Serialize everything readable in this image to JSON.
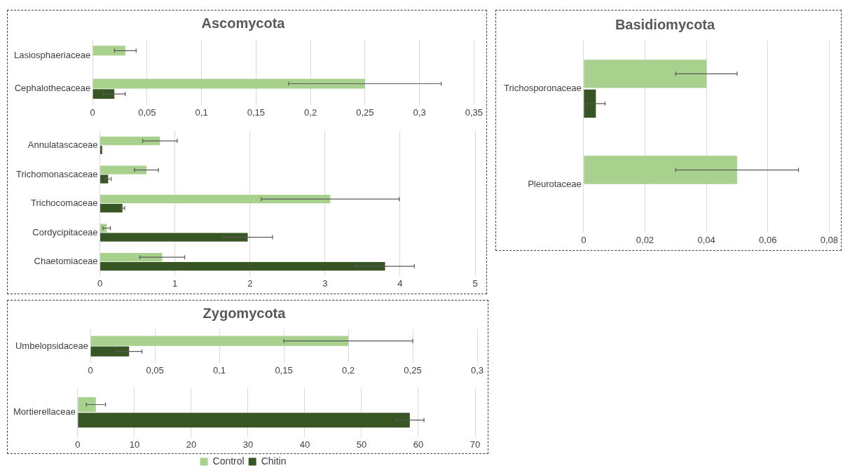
{
  "chart_data": [
    {
      "type": "bar",
      "orientation": "horizontal",
      "title": "Ascomycota",
      "categories": [
        "Lasiosphaeriaceae",
        "Cephalothecaceae"
      ],
      "series": [
        {
          "color": "#a9d18e",
          "values": [
            0.03,
            0.25
          ],
          "errors": [
            0.01,
            0.07
          ]
        },
        {
          "color": "#375623",
          "values": [
            null,
            0.02
          ],
          "errors": [
            null,
            0.01
          ]
        }
      ],
      "xlim": [
        0,
        0.35
      ],
      "xticks": [
        0,
        {
          "value": 0.05,
          "label": "0,05"
        },
        {
          "value": 0.1,
          "label": "0,1"
        },
        {
          "value": 0.15,
          "label": "0,15"
        },
        {
          "value": 0.2,
          "label": "0,2"
        },
        {
          "value": 0.25,
          "label": "0,25"
        },
        {
          "value": 0.3,
          "label": "0,3"
        },
        {
          "value": 0.35,
          "label": "0,35"
        }
      ],
      "grid": "x"
    },
    {
      "type": "bar",
      "orientation": "horizontal",
      "categories": [
        "Annulatascaceae",
        "Trichomonascaceae",
        "Trichocomaceae",
        "Cordycipitaceae",
        "Chaetomiaceae"
      ],
      "series": [
        {
          "color": "#a9d18e",
          "values": [
            0.8,
            0.62,
            3.07,
            0.09,
            0.83
          ],
          "errors": [
            0.23,
            0.16,
            0.92,
            0.05,
            0.3
          ]
        },
        {
          "color": "#375623",
          "values": [
            0.03,
            0.11,
            0.3,
            1.97,
            3.8
          ],
          "errors": [
            null,
            0.04,
            0.03,
            0.33,
            0.39
          ]
        }
      ],
      "xlim": [
        0,
        5
      ],
      "xticks": [
        0,
        1,
        2,
        3,
        4,
        5
      ],
      "grid": "x"
    },
    {
      "type": "bar",
      "orientation": "horizontal",
      "title": "Basidiomycota",
      "categories": [
        "Trichosporonaceae",
        "Pleurotaceae"
      ],
      "series": [
        {
          "color": "#a9d18e",
          "values": [
            0.04,
            0.05
          ],
          "errors": [
            0.01,
            0.02
          ]
        },
        {
          "color": "#375623",
          "values": [
            0.004,
            null
          ],
          "errors": [
            0.003,
            null
          ]
        }
      ],
      "xlim": [
        0,
        0.08
      ],
      "xticks": [
        0,
        {
          "value": 0.02,
          "label": "0,02"
        },
        {
          "value": 0.04,
          "label": "0,04"
        },
        {
          "value": 0.06,
          "label": "0,06"
        },
        {
          "value": 0.08,
          "label": "0,08"
        }
      ],
      "grid": "x"
    },
    {
      "type": "bar",
      "orientation": "horizontal",
      "title": "Zygomycota",
      "categories": [
        "Umbelopsidaceae"
      ],
      "series": [
        {
          "color": "#a9d18e",
          "values": [
            0.2
          ],
          "errors": [
            0.05
          ]
        },
        {
          "color": "#375623",
          "values": [
            0.03
          ],
          "errors": [
            0.01
          ]
        }
      ],
      "xlim": [
        0,
        0.3
      ],
      "xticks": [
        0,
        {
          "value": 0.05,
          "label": "0,05"
        },
        {
          "value": 0.1,
          "label": "0,1"
        },
        {
          "value": 0.15,
          "label": "0,15"
        },
        {
          "value": 0.2,
          "label": "0,2"
        },
        {
          "value": 0.25,
          "label": "0,25"
        },
        {
          "value": 0.3,
          "label": "0,3"
        }
      ],
      "grid": "x"
    },
    {
      "type": "bar",
      "orientation": "horizontal",
      "categories": [
        "Mortierellaceae"
      ],
      "series": [
        {
          "name": "Control",
          "color": "#a9d18e",
          "values": [
            3.2
          ],
          "errors": [
            1.7
          ]
        },
        {
          "name": "Chitin",
          "color": "#375623",
          "values": [
            58.5
          ],
          "errors": [
            2.5
          ]
        }
      ],
      "xlim": [
        0,
        70
      ],
      "xticks": [
        0,
        10,
        20,
        30,
        40,
        50,
        60,
        70
      ],
      "grid": "x",
      "legend": "bottom"
    }
  ]
}
